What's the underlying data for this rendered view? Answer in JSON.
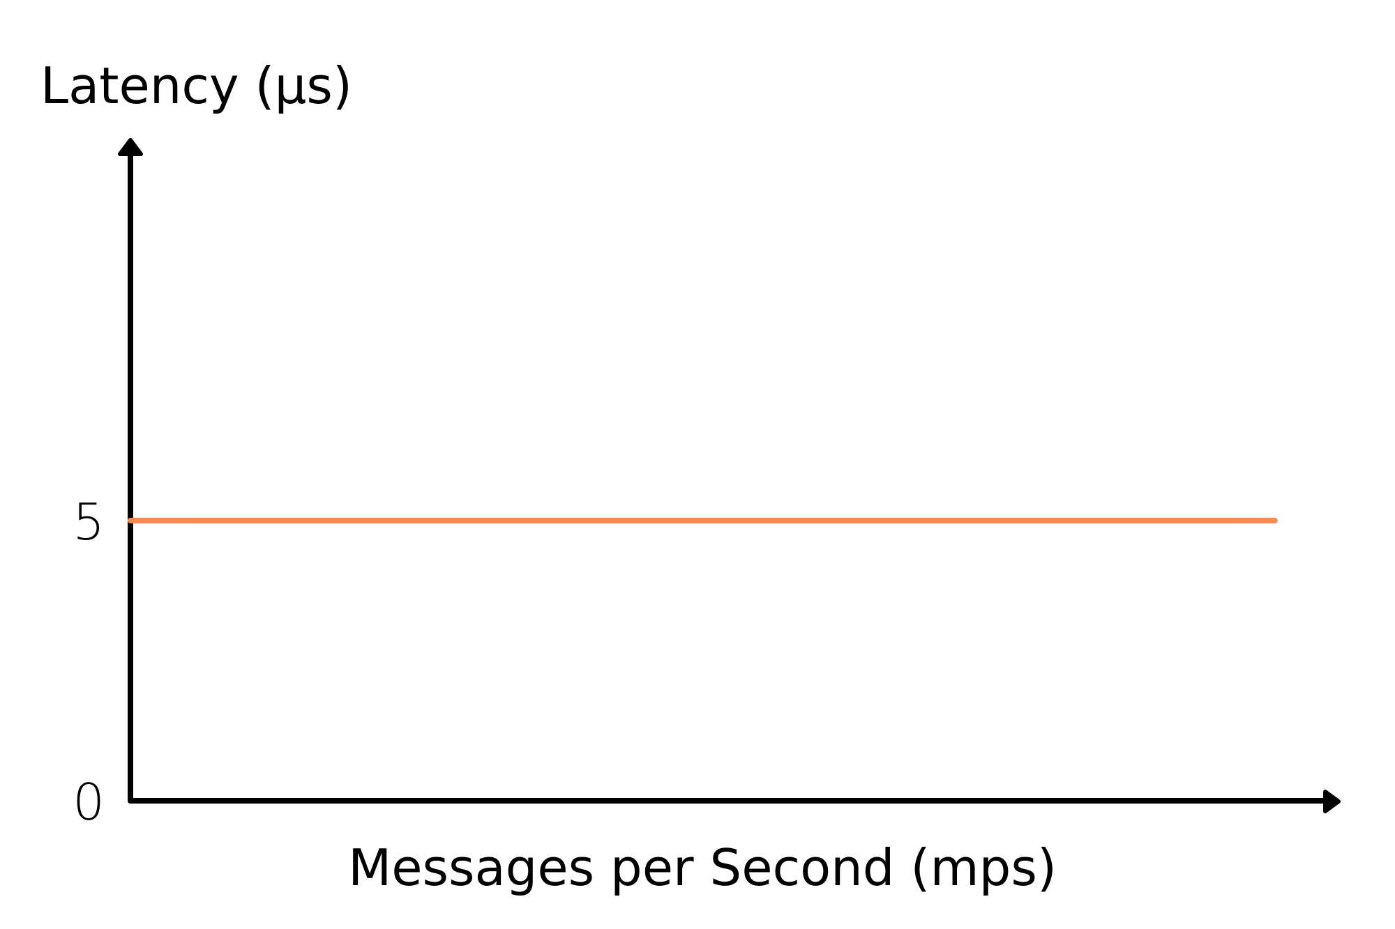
{
  "chart_data": {
    "type": "line",
    "ylabel": "Latency  (µs)",
    "xlabel": "Messages per Second (mps)",
    "y_ticks": [
      "0",
      "5"
    ],
    "ylim": [
      0,
      11.8
    ],
    "xlim": [
      0,
      1
    ],
    "series": [
      {
        "x": [
          0,
          0.955
        ],
        "values": [
          5,
          5
        ],
        "color": "#F58B4C"
      }
    ],
    "colors": {
      "axis": "#000000",
      "line": "#F58B4C"
    },
    "grid": false,
    "legend": "none"
  }
}
